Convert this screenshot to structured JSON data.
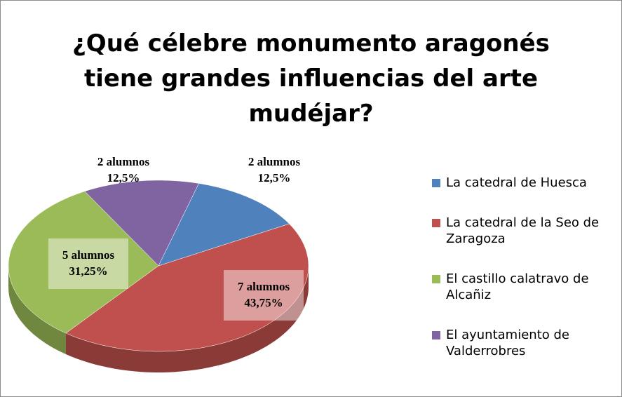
{
  "chart_data": {
    "type": "pie3d",
    "title": "¿Qué célebre monumento aragonés tiene grandes influencias del arte mudéjar?",
    "categories": [
      "La catedral de Huesca",
      "La catedral de la Seo de Zaragoza",
      "El castillo calatravo de Alcañiz",
      "El ayuntamiento de Valderrobres"
    ],
    "values": [
      2,
      7,
      5,
      2
    ],
    "value_labels": [
      "2 alumnos",
      "7 alumnos",
      "5 alumnos",
      "2 alumnos"
    ],
    "percentages": [
      12.5,
      43.75,
      31.25,
      12.5
    ],
    "percentage_labels": [
      "12,5%",
      "43,75%",
      "31,25%",
      "12,5%"
    ],
    "colors": [
      "#4f81bd",
      "#c0504d",
      "#9bbb59",
      "#8064a2"
    ],
    "legend": "right"
  }
}
